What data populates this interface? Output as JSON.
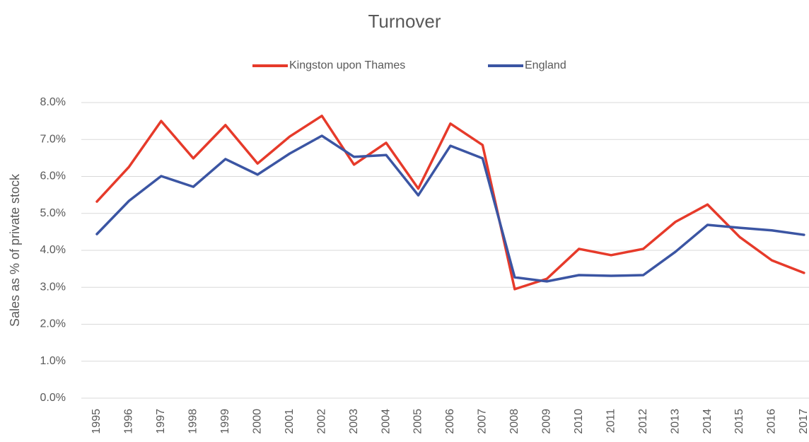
{
  "chart_data": {
    "type": "line",
    "title": "Turnover",
    "y_label": "Sales as % of private stock",
    "categories": [
      "1995",
      "1996",
      "1997",
      "1998",
      "1999",
      "2000",
      "2001",
      "2002",
      "2003",
      "2004",
      "2005",
      "2006",
      "2007",
      "2008",
      "2009",
      "2010",
      "2011",
      "2012",
      "2013",
      "2014",
      "2015",
      "2016",
      "2017"
    ],
    "series": [
      {
        "name": "Kingston upon Thames",
        "color": "#e63a2a",
        "values": [
          5.32,
          6.26,
          7.5,
          6.49,
          7.39,
          6.35,
          7.08,
          7.64,
          6.32,
          6.91,
          5.67,
          7.43,
          6.85,
          2.95,
          3.23,
          4.04,
          3.87,
          4.04,
          4.77,
          5.24,
          4.36,
          3.73,
          3.39
        ]
      },
      {
        "name": "England",
        "color": "#3b55a3",
        "values": [
          4.44,
          5.34,
          6.01,
          5.72,
          6.47,
          6.05,
          6.62,
          7.1,
          6.53,
          6.58,
          5.49,
          6.83,
          6.49,
          3.27,
          3.16,
          3.33,
          3.31,
          3.33,
          3.96,
          4.69,
          4.61,
          4.54,
          4.42
        ]
      }
    ],
    "ylim": [
      0,
      8
    ],
    "yticks": [
      {
        "value": 0,
        "label": "0.0%"
      },
      {
        "value": 1,
        "label": "1.0%"
      },
      {
        "value": 2,
        "label": "2.0%"
      },
      {
        "value": 3,
        "label": "3.0%"
      },
      {
        "value": 4,
        "label": "4.0%"
      },
      {
        "value": 5,
        "label": "5.0%"
      },
      {
        "value": 6,
        "label": "6.0%"
      },
      {
        "value": 7,
        "label": "7.0%"
      },
      {
        "value": 8,
        "label": "8.0%"
      }
    ],
    "grid": true,
    "legend": "top"
  }
}
